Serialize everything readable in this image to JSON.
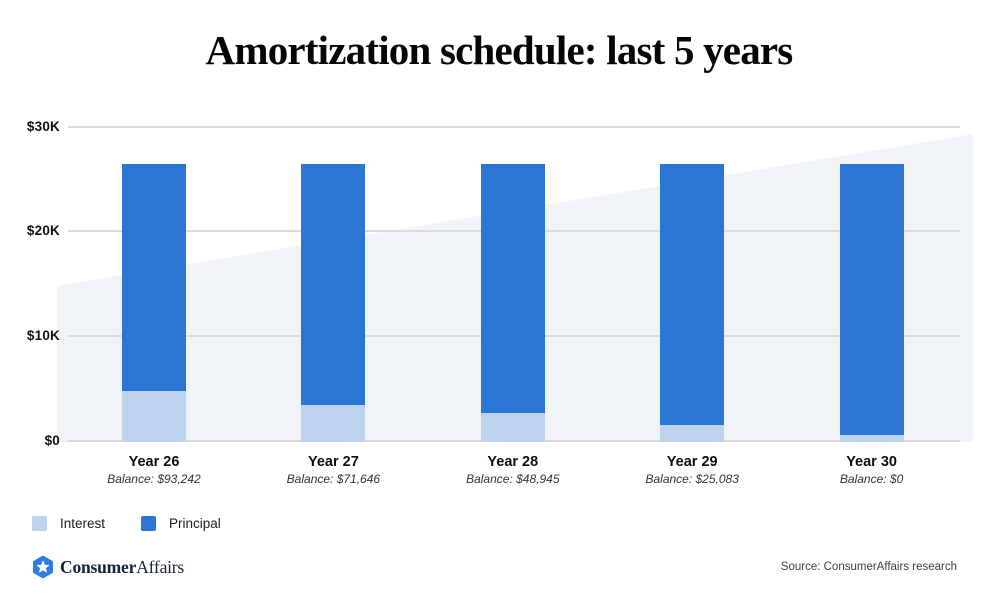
{
  "title": "Amortization schedule: last 5 years",
  "y_axis": {
    "ticks": [
      "$30K",
      "$20K",
      "$10K",
      "$0"
    ]
  },
  "chart_data": {
    "type": "bar",
    "stacked": true,
    "title": "Amortization schedule: last 5 years",
    "categories": [
      "Year 26",
      "Year 27",
      "Year 28",
      "Year 29",
      "Year 30"
    ],
    "x_sublabels": [
      "Balance: $93,242",
      "Balance: $71,646",
      "Balance: $48,945",
      "Balance: $25,083",
      "Balance: $0"
    ],
    "series": [
      {
        "name": "Interest",
        "color": "#bdd3ee",
        "values": [
          4800,
          3450,
          2700,
          1600,
          600
        ]
      },
      {
        "name": "Principal",
        "color": "#2b76d3",
        "values": [
          21650,
          23000,
          23750,
          24850,
          25850
        ]
      }
    ],
    "ylim": [
      0,
      30000
    ],
    "y_tick_values": [
      0,
      10000,
      20000,
      30000
    ],
    "y_tick_labels": [
      "$0",
      "$10K",
      "$20K",
      "$30K"
    ],
    "grid": true,
    "legend_position": "bottom-left",
    "background_wedge": {
      "left_value": 14800,
      "right_value": 29300,
      "color": "#f0f4f9"
    }
  },
  "legend": {
    "items": [
      {
        "label": "Interest",
        "color": "#bdd3ee"
      },
      {
        "label": "Principal",
        "color": "#2b76d3"
      }
    ]
  },
  "footer": {
    "brand_bold": "Consumer",
    "brand_regular": "Affairs",
    "source": "Source: ConsumerAffairs research",
    "logo_blue": "#2e7de2",
    "logo_navy": "#14233c"
  }
}
